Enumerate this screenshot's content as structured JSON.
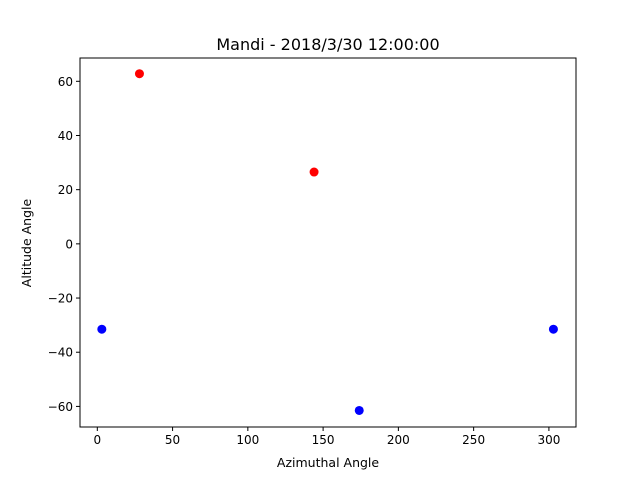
{
  "chart_data": {
    "type": "scatter",
    "title": "Mandi - 2018/3/30 12:00:00",
    "xlabel": "Azimuthal Angle",
    "ylabel": "Altitude Angle",
    "xlim": [
      -11.5,
      318
    ],
    "ylim": [
      -67.6,
      68.6
    ],
    "xticks": [
      0,
      50,
      100,
      150,
      200,
      250,
      300
    ],
    "yticks": [
      -60,
      -40,
      -20,
      0,
      20,
      40,
      60
    ],
    "xtick_labels": [
      "0",
      "50",
      "100",
      "150",
      "200",
      "250",
      "300"
    ],
    "ytick_labels": [
      "−60",
      "−40",
      "−20",
      "0",
      "20",
      "40",
      "60"
    ],
    "grid": false,
    "series": [
      {
        "color": "#ff0000",
        "x": [
          28,
          144
        ],
        "y": [
          62.8,
          26.5
        ]
      },
      {
        "color": "#0000ff",
        "x": [
          3,
          174,
          303
        ],
        "y": [
          -31.5,
          -61.5,
          -31.5
        ]
      }
    ]
  }
}
